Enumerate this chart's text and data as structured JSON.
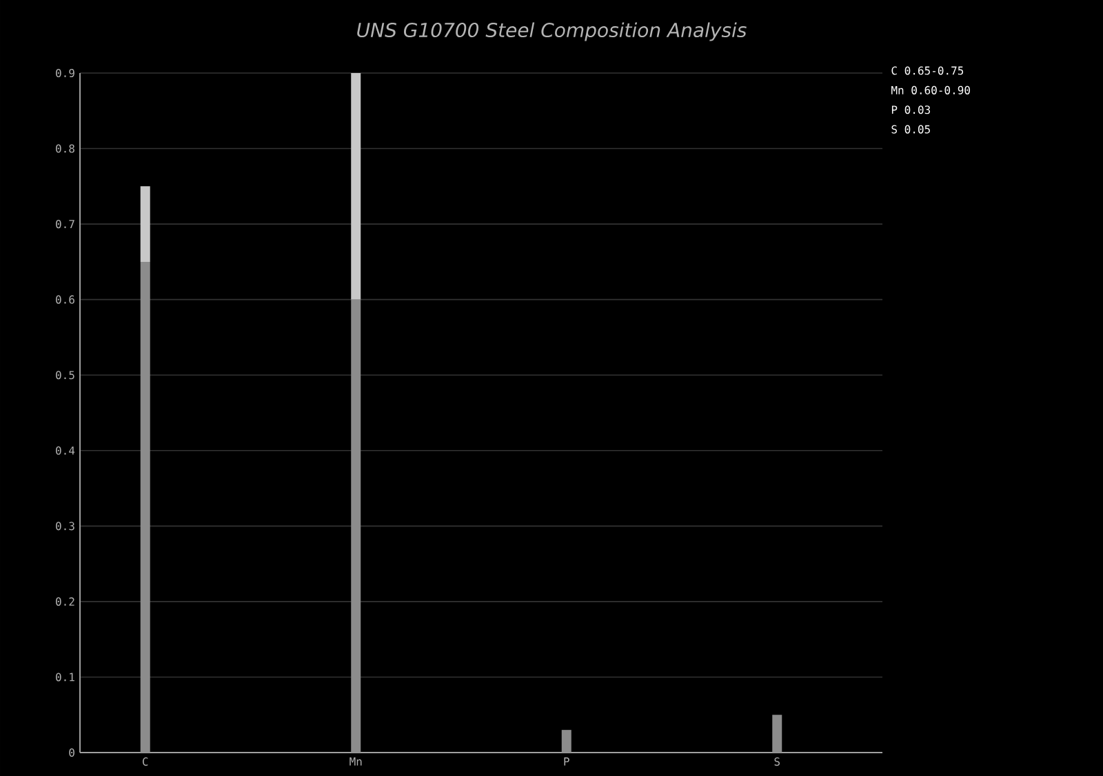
{
  "chart_data": {
    "type": "bar",
    "title": "UNS G10700 Steel Composition Analysis",
    "categories": [
      "C",
      "Mn",
      "P",
      "S"
    ],
    "stacked": true,
    "series": [
      {
        "color": "#8c8c8c",
        "values": [
          0.65,
          0.6,
          0.03,
          0.05
        ]
      },
      {
        "color": "#c8c8c8",
        "values": [
          0.1,
          0.3,
          0,
          0
        ]
      }
    ],
    "ylim": [
      0,
      0.9
    ],
    "yticks": [
      0,
      0.1,
      0.2,
      0.3,
      0.4,
      0.5,
      0.6,
      0.7,
      0.8,
      0.9
    ],
    "grid": "y",
    "annotations": [
      "C 0.65-0.75",
      "Mn 0.60-0.90",
      "P 0.03",
      "S 0.05"
    ]
  }
}
